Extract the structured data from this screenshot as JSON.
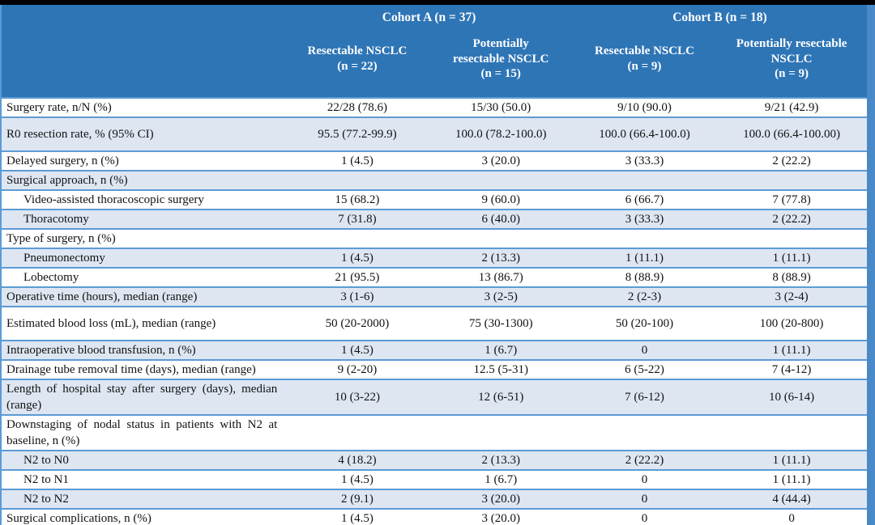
{
  "colors": {
    "header_bg": "#2E75B6",
    "header_text": "#ffffff",
    "shaded_row_bg": "#DEE6F2",
    "row_separator": "#5B9BD5",
    "right_edge_stripe": "#4A89C8",
    "frame_bars": "#000000",
    "body_text": "#121212"
  },
  "table": {
    "cohort_headers": [
      {
        "label": "Cohort A (n = 37)"
      },
      {
        "label": "Cohort B (n = 18)"
      }
    ],
    "column_headers": [
      {
        "label": "Resectable NSCLC\n(n = 22)"
      },
      {
        "label": "Potentially\nresectable NSCLC\n(n = 15)"
      },
      {
        "label": "Resectable NSCLC\n(n = 9)"
      },
      {
        "label": "Potentially resectable\nNSCLC\n(n = 9)"
      }
    ],
    "rows": [
      {
        "label": "Surgery rate, n/N (%)",
        "indent": false,
        "shaded": false,
        "tall": false,
        "values": [
          "22/28 (78.6)",
          "15/30 (50.0)",
          "9/10 (90.0)",
          "9/21 (42.9)"
        ]
      },
      {
        "label": "R0 resection rate, % (95% CI)",
        "indent": false,
        "shaded": true,
        "tall": true,
        "values": [
          "95.5 (77.2-99.9)",
          "100.0 (78.2-100.0)",
          "100.0 (66.4-100.0)",
          "100.0 (66.4-100.00)"
        ]
      },
      {
        "label": "Delayed surgery, n (%)",
        "indent": false,
        "shaded": false,
        "tall": false,
        "values": [
          "1 (4.5)",
          "3 (20.0)",
          "3 (33.3)",
          "2 (22.2)"
        ]
      },
      {
        "label": "Surgical approach, n (%)",
        "indent": false,
        "shaded": true,
        "tall": false,
        "values": [
          "",
          "",
          "",
          ""
        ]
      },
      {
        "label": "Video-assisted thoracoscopic surgery",
        "indent": true,
        "shaded": false,
        "tall": false,
        "values": [
          "15 (68.2)",
          "9 (60.0)",
          "6 (66.7)",
          "7 (77.8)"
        ]
      },
      {
        "label": "Thoracotomy",
        "indent": true,
        "shaded": true,
        "tall": false,
        "values": [
          "7 (31.8)",
          "6 (40.0)",
          "3 (33.3)",
          "2 (22.2)"
        ]
      },
      {
        "label": "Type of surgery, n (%)",
        "indent": false,
        "shaded": false,
        "tall": false,
        "values": [
          "",
          "",
          "",
          ""
        ]
      },
      {
        "label": "Pneumonectomy",
        "indent": true,
        "shaded": true,
        "tall": false,
        "values": [
          "1 (4.5)",
          "2 (13.3)",
          "1 (11.1)",
          "1 (11.1)"
        ]
      },
      {
        "label": "Lobectomy",
        "indent": true,
        "shaded": false,
        "tall": false,
        "values": [
          "21 (95.5)",
          "13 (86.7)",
          "8 (88.9)",
          "8 (88.9)"
        ]
      },
      {
        "label": "Operative time (hours), median (range)",
        "indent": false,
        "shaded": true,
        "tall": false,
        "values": [
          "3 (1-6)",
          "3 (2-5)",
          "2 (2-3)",
          "3 (2-4)"
        ]
      },
      {
        "label": "Estimated blood loss (mL), median (range)",
        "indent": false,
        "shaded": false,
        "tall": true,
        "values": [
          "50 (20-2000)",
          "75 (30-1300)",
          "50 (20-100)",
          "100 (20-800)"
        ]
      },
      {
        "label": "Intraoperative blood transfusion, n (%)",
        "indent": false,
        "shaded": true,
        "tall": false,
        "values": [
          "1 (4.5)",
          "1 (6.7)",
          "0",
          "1 (11.1)"
        ]
      },
      {
        "label": "Drainage tube removal time (days), median (range)",
        "indent": false,
        "shaded": false,
        "tall": false,
        "values": [
          "9 (2-20)",
          "12.5 (5-31)",
          "6 (5-22)",
          "7 (4-12)"
        ]
      },
      {
        "label": "Length of hospital stay after surgery (days), median (range)",
        "indent": false,
        "shaded": true,
        "tall": false,
        "values": [
          "10 (3-22)",
          "12 (6-51)",
          "7 (6-12)",
          "10 (6-14)"
        ]
      },
      {
        "label": "Downstaging of nodal status in patients with N2 at baseline, n (%)",
        "indent": false,
        "shaded": false,
        "tall": false,
        "values": [
          "",
          "",
          "",
          ""
        ]
      },
      {
        "label": "N2 to N0",
        "indent": true,
        "shaded": true,
        "tall": false,
        "values": [
          "4 (18.2)",
          "2 (13.3)",
          "2 (22.2)",
          "1 (11.1)"
        ]
      },
      {
        "label": "N2 to N1",
        "indent": true,
        "shaded": false,
        "tall": false,
        "values": [
          "1 (4.5)",
          "1 (6.7)",
          "0",
          "1 (11.1)"
        ]
      },
      {
        "label": "N2 to N2",
        "indent": true,
        "shaded": true,
        "tall": false,
        "values": [
          "2 (9.1)",
          "3 (20.0)",
          "0",
          "4 (44.4)"
        ]
      },
      {
        "label": "Surgical complications, n (%)",
        "indent": false,
        "shaded": false,
        "tall": false,
        "values": [
          "1 (4.5)",
          "3 (20.0)",
          "0",
          "0"
        ]
      }
    ]
  }
}
